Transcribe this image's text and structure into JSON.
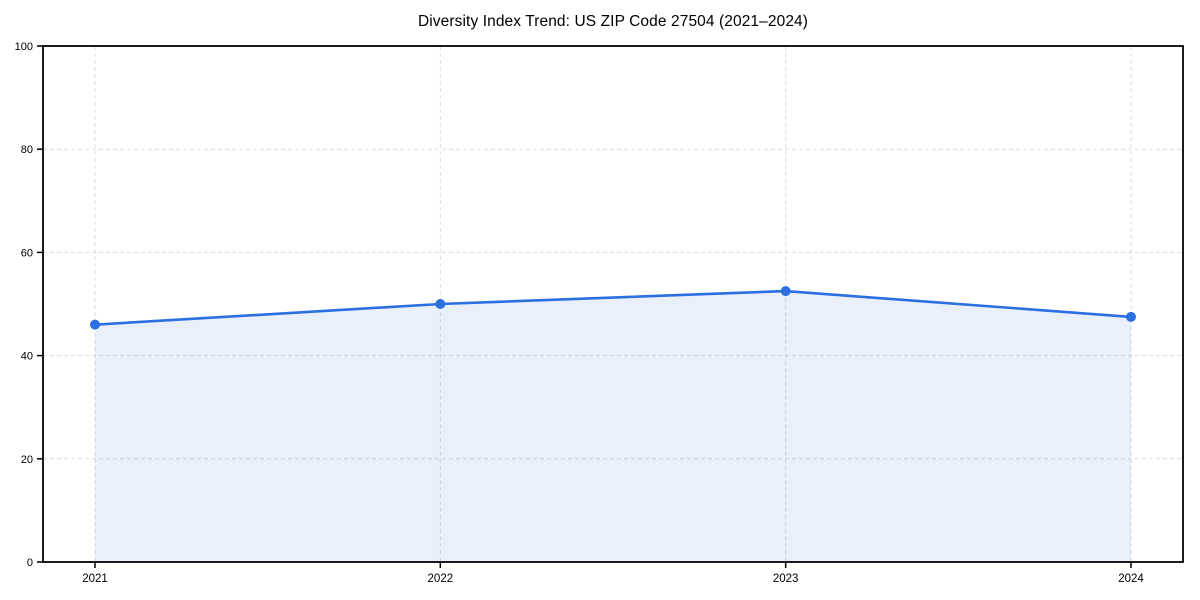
{
  "chart_data": {
    "type": "area",
    "title": "Diversity Index Trend: US ZIP Code 27504 (2021–2024)",
    "x": [
      2021,
      2022,
      2023,
      2024
    ],
    "xticks": [
      "2021",
      "2022",
      "2023",
      "2024"
    ],
    "series": [
      {
        "name": "Diversity Index",
        "values": [
          46,
          50,
          52.5,
          47.5
        ]
      }
    ],
    "xlabel": "",
    "ylabel": "",
    "ylim": [
      0,
      100
    ],
    "yticks": [
      0,
      20,
      40,
      60,
      80,
      100
    ],
    "grid": "dashed",
    "legend_position": "none",
    "colors": {
      "line": "#2b6fe0",
      "marker": "#2b6fe0",
      "fill": "rgba(43, 111, 224, 0.10)",
      "gridline": "#dcdcdc",
      "spine": "#000000",
      "tick_label": "#000000",
      "background": "#ffffff"
    }
  }
}
